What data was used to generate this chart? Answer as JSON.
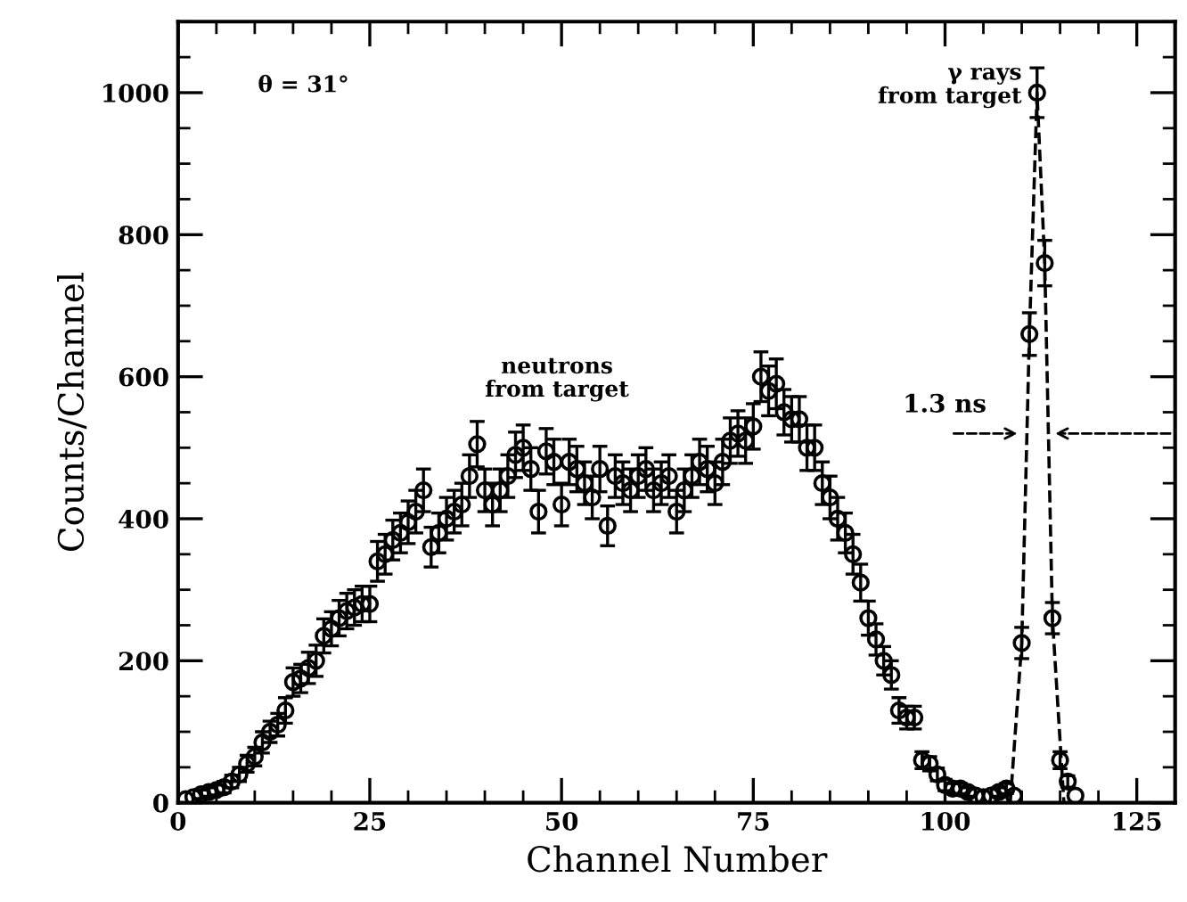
{
  "chart_data": {
    "type": "scatter",
    "xlabel": "Channel Number",
    "ylabel": "Counts/Channel",
    "annotations": [
      {
        "text": "θ = 31°"
      },
      "neutrons\nfrom target",
      {
        "text": "γ rays\nfrom target",
        "x": 112,
        "y": 1000
      },
      {
        "text": "1.3 ns",
        "x": 110.5,
        "y": 520
      }
    ],
    "series": [
      {
        "color": "#000000",
        "marker": "circle",
        "x": [
          1,
          2,
          3,
          4,
          5,
          6,
          7,
          8,
          9,
          10,
          11,
          12,
          13,
          14,
          15,
          16,
          17,
          18,
          19,
          20,
          21,
          22,
          23,
          24,
          25,
          26,
          27,
          28,
          29,
          30,
          31,
          32,
          33,
          34,
          35,
          36,
          37,
          38,
          39,
          40,
          41,
          42,
          43,
          44,
          45,
          46,
          47,
          48,
          49,
          50,
          51,
          52,
          53,
          54,
          55,
          56,
          57,
          58,
          59,
          60,
          61,
          62,
          63,
          64,
          65,
          66,
          67,
          68,
          69,
          70,
          71,
          72,
          73,
          74,
          75,
          76,
          77,
          78,
          79,
          80,
          81,
          82,
          83,
          84,
          85,
          86,
          87,
          88,
          89,
          90,
          91,
          92,
          93,
          94,
          95,
          96,
          97,
          98,
          99,
          100,
          101,
          102,
          103,
          104,
          105,
          106,
          107,
          108,
          109,
          110,
          111,
          112,
          113,
          114,
          115,
          116,
          117
        ],
        "values": [
          5,
          8,
          12,
          15,
          18,
          22,
          30,
          40,
          55,
          65,
          85,
          100,
          110,
          130,
          170,
          175,
          190,
          200,
          235,
          245,
          260,
          270,
          275,
          280,
          280,
          340,
          350,
          370,
          380,
          395,
          410,
          440,
          360,
          380,
          400,
          410,
          420,
          460,
          505,
          440,
          420,
          440,
          460,
          490,
          500,
          470,
          410,
          495,
          480,
          420,
          480,
          470,
          450,
          430,
          470,
          390,
          460,
          450,
          440,
          460,
          470,
          440,
          450,
          460,
          410,
          440,
          460,
          480,
          470,
          450,
          480,
          510,
          520,
          510,
          530,
          600,
          580,
          590,
          550,
          540,
          540,
          500,
          500,
          450,
          430,
          400,
          380,
          350,
          310,
          260,
          230,
          200,
          180,
          130,
          120,
          120,
          60,
          55,
          40,
          25,
          20,
          20,
          15,
          10,
          8,
          10,
          15,
          20,
          10,
          225,
          660,
          1000,
          760,
          260,
          60,
          30,
          10
        ],
        "errors": [
          null,
          null,
          6,
          6,
          7,
          8,
          9,
          10,
          12,
          13,
          15,
          15,
          16,
          18,
          20,
          20,
          22,
          22,
          24,
          24,
          25,
          25,
          25,
          25,
          25,
          28,
          28,
          28,
          28,
          30,
          30,
          30,
          28,
          28,
          30,
          30,
          30,
          30,
          32,
          30,
          30,
          30,
          30,
          32,
          32,
          30,
          30,
          32,
          32,
          30,
          32,
          32,
          30,
          30,
          32,
          28,
          30,
          30,
          30,
          30,
          30,
          30,
          30,
          30,
          30,
          30,
          30,
          32,
          32,
          30,
          32,
          32,
          32,
          32,
          32,
          35,
          35,
          35,
          32,
          32,
          32,
          32,
          32,
          30,
          30,
          30,
          28,
          28,
          26,
          24,
          22,
          20,
          20,
          18,
          16,
          16,
          12,
          10,
          9,
          8,
          7,
          7,
          6,
          null,
          null,
          null,
          6,
          7,
          null,
          22,
          30,
          35,
          32,
          22,
          12,
          8,
          null
        ]
      },
      {
        "type": "line",
        "color": "#000000",
        "line_style": "dashed",
        "marker": "none",
        "x": [
          108.5,
          110,
          111,
          112,
          113,
          114,
          115.5
        ],
        "values": [
          0,
          225,
          660,
          1000,
          760,
          260,
          0
        ]
      }
    ],
    "xlim": [
      0,
      130
    ],
    "ylim": [
      0,
      1100
    ],
    "xticks": [
      0,
      25,
      50,
      75,
      100,
      125
    ],
    "yticks": [
      0,
      200,
      400,
      600,
      800,
      1000
    ],
    "grid": false,
    "legend": false
  }
}
